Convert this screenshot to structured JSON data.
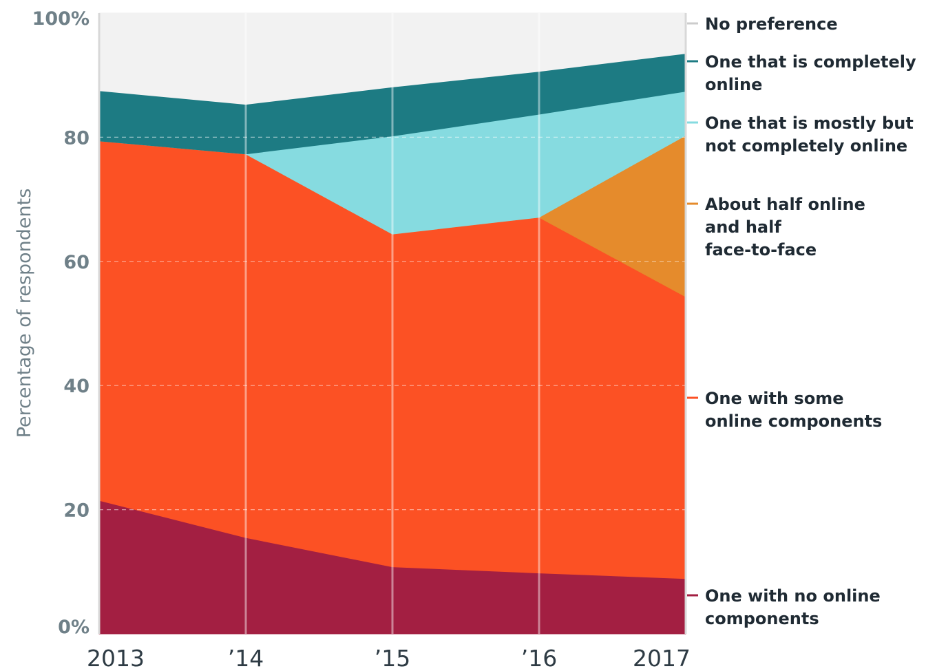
{
  "chart_data": {
    "type": "area",
    "stacked": true,
    "xlabel": "",
    "ylabel": "Percentage of respondents",
    "ylim": [
      0,
      100
    ],
    "x": [
      2013,
      2014,
      2015,
      2016,
      2017
    ],
    "x_tick_labels": [
      "2013",
      "’14",
      "’15",
      "’16",
      "2017"
    ],
    "y_ticks": [
      0,
      20,
      40,
      60,
      80,
      100
    ],
    "y_tick_labels": [
      "0%",
      "20",
      "40",
      "60",
      "80",
      "100%"
    ],
    "grid": true,
    "legend_position": "right",
    "series": [
      {
        "name": "One with no online components",
        "color": "#a31f42",
        "values": [
          21.5,
          15.5,
          10.8,
          9.8,
          8.9
        ]
      },
      {
        "name": "One with some online components",
        "color": "#fc5124",
        "values": [
          57.9,
          61.8,
          53.6,
          57.3,
          45.4
        ]
      },
      {
        "name": "About half online and half face-to-face",
        "color": "#e58b2c",
        "values": [
          0,
          0,
          0,
          0,
          26.0
        ]
      },
      {
        "name": "One that is mostly but not completely online",
        "color": "#86dbe0",
        "values": [
          0,
          0,
          15.8,
          16.6,
          7.1
        ]
      },
      {
        "name": "One that is completely online",
        "color": "#1d7b83",
        "values": [
          8.1,
          8.0,
          7.9,
          6.9,
          6.1
        ]
      },
      {
        "name": "No preference",
        "color": "#f2f2f2",
        "values": [
          12.5,
          14.7,
          11.9,
          9.4,
          6.5
        ]
      }
    ],
    "legend_lines": [
      {
        "series": "No preference",
        "lines": [
          "No preference"
        ],
        "color": "#cccccc"
      },
      {
        "series": "One that is completely online",
        "lines": [
          "One that is completely",
          "online"
        ],
        "color": "#1d7b83"
      },
      {
        "series": "One that is mostly but not completely online",
        "lines": [
          "One that is mostly but",
          "not completely online"
        ],
        "color": "#86dbe0"
      },
      {
        "series": "About half online and half face-to-face",
        "lines": [
          "About half online",
          "and half",
          "face-to-face"
        ],
        "color": "#e58b2c"
      },
      {
        "series": "One with some online components",
        "lines": [
          "One with some",
          "online components"
        ],
        "color": "#fc5124"
      },
      {
        "series": "One with no online components",
        "lines": [
          "One with no online",
          "components"
        ],
        "color": "#a31f42"
      }
    ]
  }
}
